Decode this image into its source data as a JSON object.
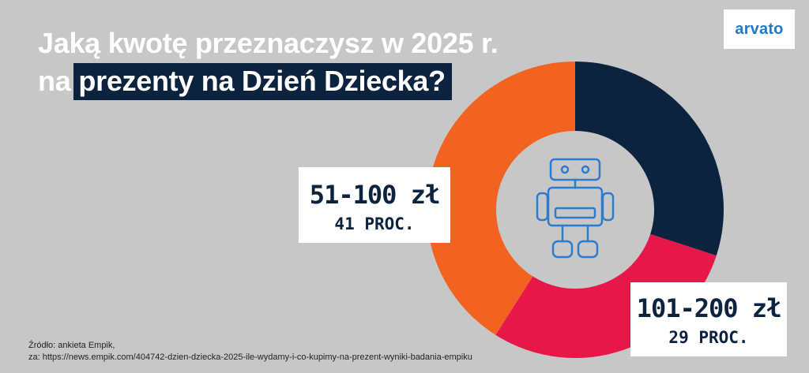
{
  "header": {
    "title_line1": "Jaką kwotę przeznaczysz w 2025 r.",
    "title_line2_prefix": "na",
    "title_line2_highlight": "prezenty na Dzień Dziecka?"
  },
  "logo": {
    "text": "arvato"
  },
  "labels": {
    "orange": {
      "range": "51-100 zł",
      "pct": "41 PROC."
    },
    "red": {
      "range": "101-200 zł",
      "pct": "29 PROC."
    }
  },
  "source": {
    "line1": "Źródło: ankieta Empik,",
    "line2": "za: https://news.empik.com/404742-dzien-dziecka-2025-ile-wydamy-i-co-kupimy-na-prezent-wyniki-badania-empiku"
  },
  "colors": {
    "background": "#c7c7c7",
    "navy": "#0c2340",
    "red": "#e8174a",
    "orange": "#f26322",
    "icon": "#2b7bd0"
  },
  "center_icon": "robot-icon",
  "chart_data": {
    "type": "pie",
    "donut": true,
    "categories": [
      "",
      "101-200 zł",
      "51-100 zł"
    ],
    "values": [
      30,
      29,
      41
    ],
    "colors": [
      "#0c2340",
      "#e8174a",
      "#f26322"
    ]
  }
}
